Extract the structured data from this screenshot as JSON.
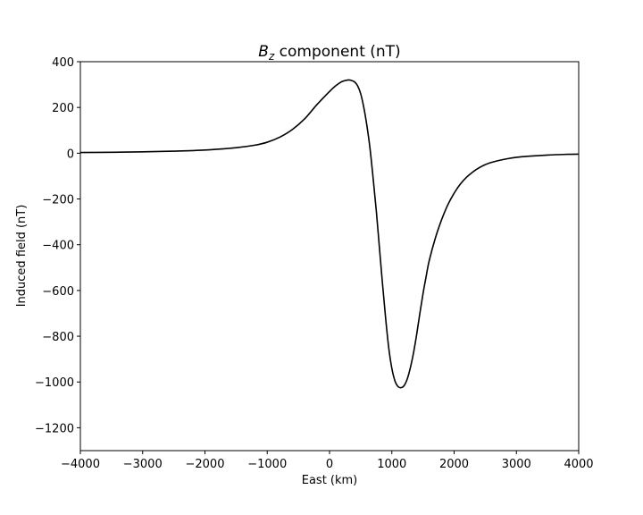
{
  "chart_data": {
    "type": "line",
    "title_base": "B",
    "title_sub": "z",
    "title_rest": " component (nT)",
    "xlabel": "East (km)",
    "ylabel": "Induced field (nT)",
    "xlim": [
      -4000,
      4000
    ],
    "ylim": [
      -1300,
      400
    ],
    "xticks": [
      -4000,
      -3000,
      -2000,
      -1000,
      0,
      1000,
      2000,
      3000,
      4000
    ],
    "yticks": [
      400,
      200,
      0,
      -200,
      -400,
      -600,
      -800,
      -1000,
      -1200
    ],
    "grid": false,
    "line_color": "#000000",
    "series": [
      {
        "x": [
          -4000,
          -3500,
          -3000,
          -2500,
          -2000,
          -1500,
          -1200,
          -1000,
          -800,
          -600,
          -400,
          -200,
          0,
          100,
          200,
          300,
          350,
          400,
          450,
          500,
          550,
          600,
          650,
          700,
          750,
          800,
          850,
          900,
          950,
          1000,
          1050,
          1100,
          1150,
          1200,
          1250,
          1300,
          1350,
          1400,
          1450,
          1500,
          1550,
          1600,
          1700,
          1800,
          1900,
          2000,
          2100,
          2200,
          2300,
          2400,
          2500,
          2600,
          2800,
          3000,
          3200,
          3500,
          3800,
          4000
        ],
        "y": [
          3,
          4,
          6,
          9,
          14,
          24,
          35,
          48,
          70,
          103,
          150,
          213,
          270,
          295,
          313,
          320,
          318,
          312,
          295,
          260,
          200,
          120,
          20,
          -110,
          -250,
          -410,
          -570,
          -720,
          -850,
          -940,
          -995,
          -1020,
          -1025,
          -1015,
          -985,
          -935,
          -870,
          -790,
          -700,
          -615,
          -540,
          -470,
          -370,
          -290,
          -225,
          -175,
          -135,
          -105,
          -82,
          -64,
          -50,
          -40,
          -27,
          -18,
          -13,
          -8,
          -5,
          -4
        ]
      }
    ]
  }
}
